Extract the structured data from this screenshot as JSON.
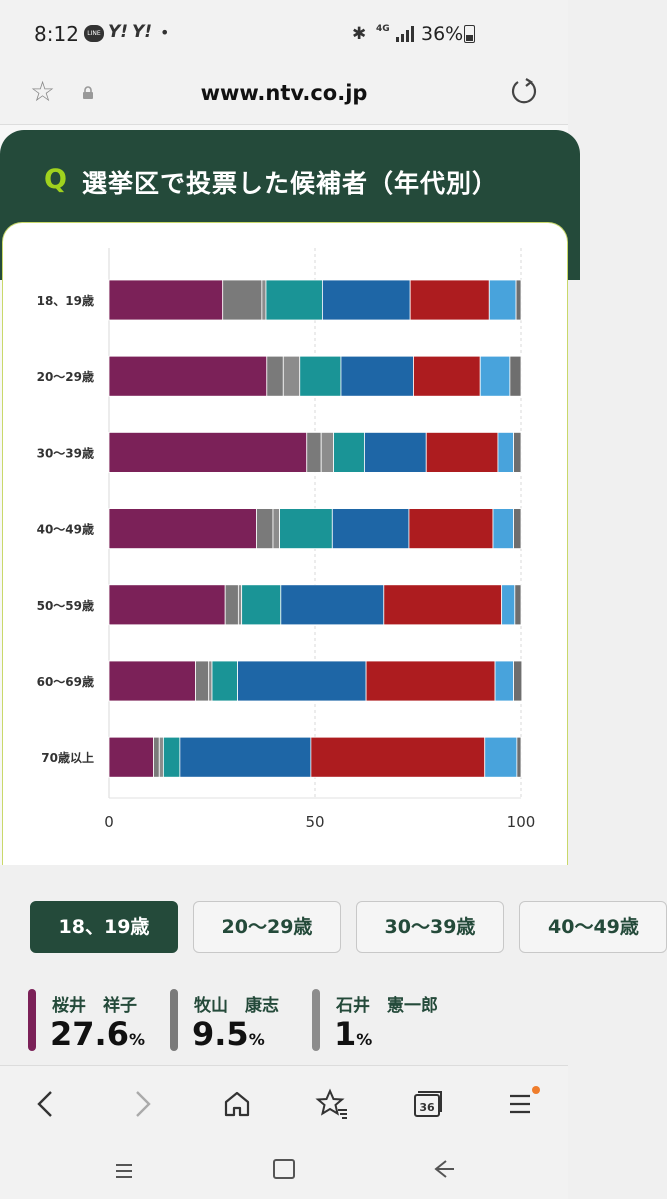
{
  "status_bar": {
    "time": "8:12",
    "line_label": "LINE",
    "yahoo_1": "Y!",
    "yahoo_2": "Y!",
    "dot": "•",
    "network": "4G",
    "battery": "36%"
  },
  "browser": {
    "url": "www.ntv.co.jp",
    "star_icon": "star-outline-icon",
    "lock_icon": "lock-icon",
    "reload_icon": "reload-icon"
  },
  "question": {
    "label": "Q",
    "title": "選挙区で投票した候補者（年代別）"
  },
  "colors": {
    "header_bg": "#244a3a",
    "q_accent": "#a0d21e",
    "series": [
      "#7b2158",
      "#7a7a7a",
      "#8c8c8c",
      "#1a9496",
      "#1e66a6",
      "#ad1c1f",
      "#48a3dc",
      "#6e6e6e"
    ]
  },
  "chart_data": {
    "type": "bar",
    "orientation": "horizontal",
    "stacked": true,
    "categories": [
      "18、19歳",
      "20〜29歳",
      "30〜39歳",
      "40〜49歳",
      "50〜59歳",
      "60〜69歳",
      "70歳以上"
    ],
    "series": [
      {
        "color": "#7b2158",
        "values": [
          27.6,
          38.3,
          48.0,
          35.8,
          28.2,
          21.0,
          10.8
        ]
      },
      {
        "color": "#7a7a7a",
        "values": [
          9.5,
          4.0,
          3.5,
          4.0,
          3.2,
          3.2,
          1.4
        ]
      },
      {
        "color": "#8c8c8c",
        "values": [
          1.0,
          4.0,
          3.0,
          1.6,
          0.8,
          0.8,
          1.0
        ]
      },
      {
        "color": "#1a9496",
        "values": [
          13.7,
          10.0,
          7.5,
          12.8,
          9.5,
          6.2,
          4.0
        ]
      },
      {
        "color": "#1e66a6",
        "values": [
          21.3,
          17.6,
          15.0,
          18.6,
          25.0,
          31.2,
          31.8
        ]
      },
      {
        "color": "#ad1c1f",
        "values": [
          19.2,
          16.2,
          17.4,
          20.4,
          28.6,
          31.3,
          42.2
        ]
      },
      {
        "color": "#48a3dc",
        "values": [
          6.5,
          7.2,
          3.8,
          5.0,
          3.2,
          4.5,
          7.8
        ]
      },
      {
        "color": "#6e6e6e",
        "values": [
          1.2,
          2.7,
          1.8,
          1.8,
          1.5,
          2.0,
          1.0
        ]
      }
    ],
    "xlim": [
      0,
      100
    ],
    "xticks": [
      "0",
      "50",
      "100"
    ],
    "grid": "vertical-dotted"
  },
  "age_tabs": [
    {
      "label": "18、19歳",
      "active": true
    },
    {
      "label": "20〜29歳",
      "active": false
    },
    {
      "label": "30〜39歳",
      "active": false
    },
    {
      "label": "40〜49歳",
      "active": false
    }
  ],
  "candidates": [
    {
      "name": "桜井　祥子",
      "pct": "27.6",
      "unit": "%",
      "color": "#7b2158"
    },
    {
      "name": "牧山　康志",
      "pct": "9.5",
      "unit": "%",
      "color": "#7a7a7a"
    },
    {
      "name": "石井　憲一郎",
      "pct": "1",
      "unit": "%",
      "color": "#8c8c8c"
    }
  ],
  "nav": {
    "back_icon": "back-arrow-icon",
    "forward_icon": "forward-arrow-icon",
    "home_icon": "home-icon",
    "bookmark_icon": "bookmarks-star-icon",
    "tabs_count": "36",
    "menu_icon": "menu-icon"
  }
}
